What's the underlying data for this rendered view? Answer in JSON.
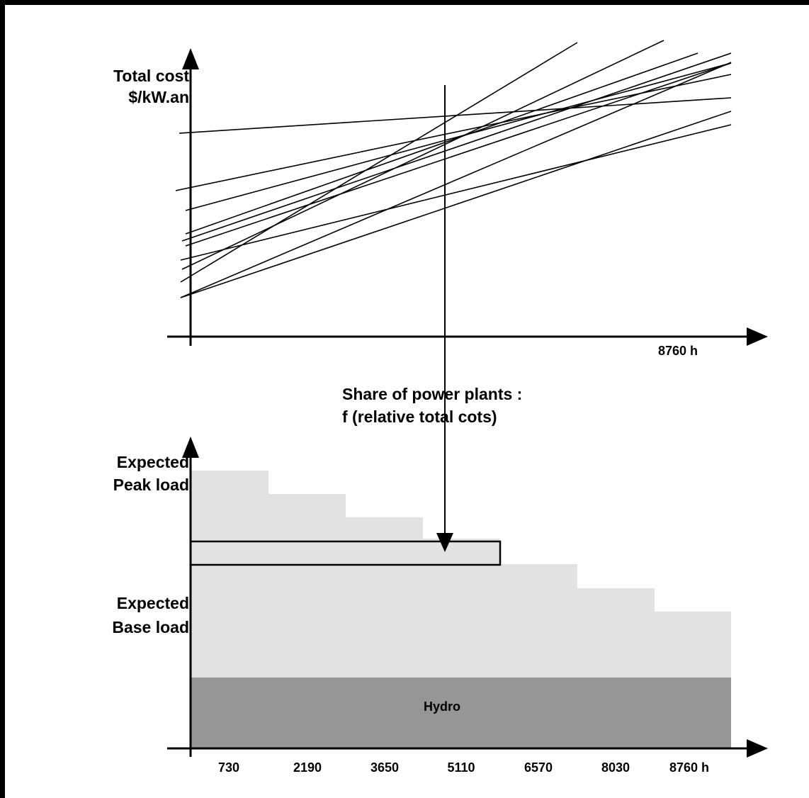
{
  "top_chart": {
    "y_axis_label_line1": "Total cost",
    "y_axis_label_line2": "$/kW.an",
    "x_axis_end_label": "8760 h"
  },
  "annotation": {
    "line1": "Share of power plants :",
    "line2": "f (relative total cots)"
  },
  "bottom_chart": {
    "peak_label_line1": "Expected",
    "peak_label_line2": "Peak load",
    "base_label_line1": "Expected",
    "base_label_line2": "Base load",
    "hydro_label": "Hydro",
    "x_tick_labels": [
      "730",
      "2190",
      "3650",
      "5110",
      "6570",
      "8030",
      "8760 h"
    ],
    "colors": {
      "load_fill": "#e2e2e2",
      "hydro_fill": "#969696"
    }
  },
  "chart_data": {
    "type": "line",
    "note": "Screening curves: total cost vs hours of operation, plus stepped load-duration blocks below",
    "bottom": {
      "type": "bar",
      "categories": [
        "730",
        "2190",
        "3650",
        "5110",
        "6570",
        "8030",
        "8760 h"
      ],
      "load_levels_relative": [
        1.0,
        0.94,
        0.88,
        0.81,
        0.75,
        0.69,
        0.63
      ],
      "hydro_level_relative": 0.11,
      "highlighted_block_categories": [
        "730",
        "2190",
        "3650",
        "5110"
      ]
    }
  }
}
